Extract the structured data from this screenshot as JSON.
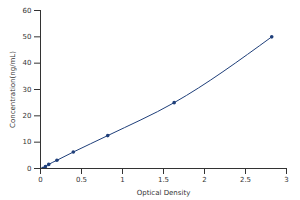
{
  "chart_data": {
    "type": "line",
    "marker": "circle",
    "color": "#1f3f7a",
    "x_label": "Optical Density",
    "y_label": "Concentration(ng/mL)",
    "x": [
      0.03,
      0.06,
      0.1,
      0.2,
      0.4,
      0.82,
      1.63,
      2.82
    ],
    "values": [
      0,
      0.78,
      1.56,
      3.12,
      6.25,
      12.5,
      25,
      50
    ],
    "xlim": [
      0,
      3
    ],
    "xticks": [
      0,
      0.5,
      1,
      1.5,
      2,
      2.5,
      3
    ],
    "ylim": [
      0,
      60
    ],
    "yticks": [
      0,
      10,
      20,
      30,
      40,
      50,
      60
    ],
    "grid": false
  }
}
